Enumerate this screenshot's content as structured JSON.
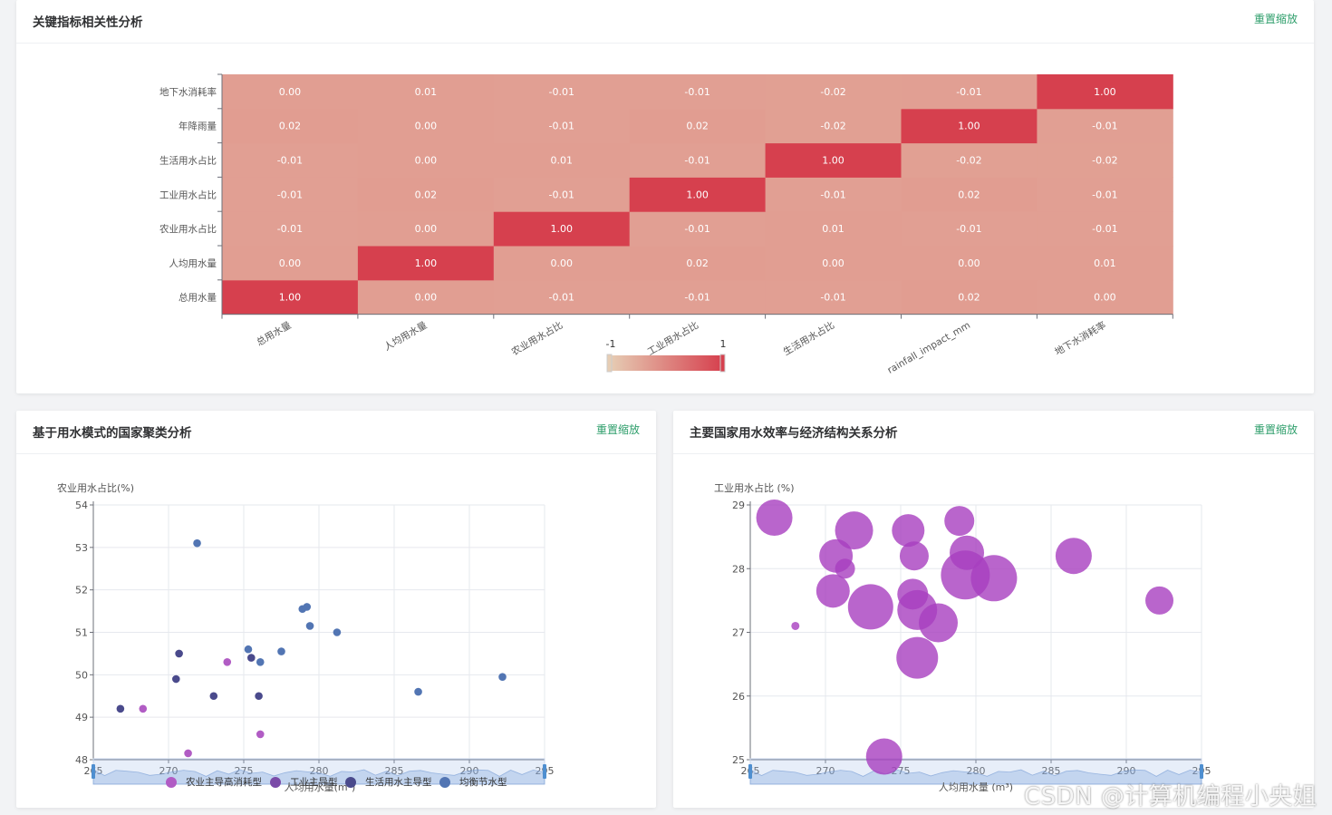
{
  "heatmap_card": {
    "title": "关键指标相关性分析",
    "reset_label": "重置缩放"
  },
  "cluster_card": {
    "title": "基于用水模式的国家聚类分析",
    "reset_label": "重置缩放"
  },
  "bubble_card": {
    "title": "主要国家用水效率与经济结构关系分析",
    "reset_label": "重置缩放"
  },
  "watermark": "CSDN @计算机编程小央姐",
  "chart_data": [
    {
      "type": "heatmap",
      "x_categories": [
        "总用水量",
        "人均用水量",
        "农业用水占比",
        "工业用水占比",
        "生活用水占比",
        "rainfall_impact_mm",
        "地下水消耗率"
      ],
      "y_categories": [
        "总用水量",
        "人均用水量",
        "农业用水占比",
        "工业用水占比",
        "生活用水占比",
        "年降雨量",
        "地下水消耗率"
      ],
      "matrix": [
        [
          "1.00",
          "0.00",
          "-0.01",
          "-0.01",
          "-0.01",
          "0.02",
          "0.00"
        ],
        [
          "0.00",
          "1.00",
          "0.00",
          "0.02",
          "0.00",
          "0.00",
          "0.01"
        ],
        [
          "-0.01",
          "0.00",
          "1.00",
          "-0.01",
          "0.01",
          "-0.01",
          "-0.01"
        ],
        [
          "-0.01",
          "0.02",
          "-0.01",
          "1.00",
          "-0.01",
          "0.02",
          "-0.01"
        ],
        [
          "-0.01",
          "0.00",
          "0.01",
          "-0.01",
          "1.00",
          "-0.02",
          "-0.02"
        ],
        [
          "0.02",
          "0.00",
          "-0.01",
          "0.02",
          "-0.02",
          "1.00",
          "-0.01"
        ],
        [
          "0.00",
          "0.01",
          "-0.01",
          "-0.01",
          "-0.02",
          "-0.01",
          "1.00"
        ]
      ],
      "visual_map": {
        "min": -1,
        "max": 1,
        "min_label": "-1",
        "max_label": "1",
        "colors": [
          "#e6cdb4",
          "#d6404e"
        ]
      }
    },
    {
      "type": "scatter",
      "xlabel": "人均用水量(m³)",
      "ylabel": "农业用水占比(%)",
      "xlim": [
        265,
        295
      ],
      "ylim": [
        48,
        54
      ],
      "x_ticks": [
        "265",
        "270",
        "275",
        "280",
        "285",
        "290",
        "295"
      ],
      "y_ticks": [
        "48",
        "49",
        "50",
        "51",
        "52",
        "53",
        "54"
      ],
      "series": [
        {
          "name": "农业主导高消耗型",
          "color": "#b15cc4",
          "points": [
            [
              273.9,
              50.3
            ],
            [
              276.1,
              48.6
            ],
            [
              268.3,
              49.2
            ],
            [
              271.3,
              48.15
            ]
          ]
        },
        {
          "name": "工业主导型",
          "color": "#7b4ba8",
          "points": []
        },
        {
          "name": "生活用水主导型",
          "color": "#4a4a8c",
          "points": [
            [
              266.8,
              49.2
            ],
            [
              270.5,
              49.9
            ],
            [
              270.7,
              50.5
            ],
            [
              273.0,
              49.5
            ],
            [
              275.5,
              50.4
            ],
            [
              276.0,
              49.5
            ]
          ]
        },
        {
          "name": "均衡节水型",
          "color": "#5275b3",
          "points": [
            [
              271.9,
              53.1
            ],
            [
              275.3,
              50.6
            ],
            [
              276.1,
              50.3
            ],
            [
              277.5,
              50.55
            ],
            [
              278.9,
              51.55
            ],
            [
              279.2,
              51.6
            ],
            [
              279.4,
              51.15
            ],
            [
              281.2,
              51.0
            ],
            [
              286.6,
              49.6
            ],
            [
              292.2,
              49.95
            ]
          ]
        }
      ]
    },
    {
      "type": "scatter",
      "subtype": "bubble",
      "xlabel": "人均用水量 (m³)",
      "ylabel": "工业用水占比 (%)",
      "xlim": [
        265,
        295
      ],
      "ylim": [
        25,
        29
      ],
      "x_ticks": [
        "265",
        "270",
        "275",
        "280",
        "285",
        "290",
        "295"
      ],
      "y_ticks": [
        "25",
        "26",
        "27",
        "28",
        "29"
      ],
      "color": "#a73fbf",
      "points": [
        [
          266.6,
          28.8,
          20
        ],
        [
          268.0,
          27.1,
          4.5
        ],
        [
          270.7,
          28.2,
          18.5
        ],
        [
          271.3,
          28.0,
          11
        ],
        [
          270.5,
          27.65,
          18.5
        ],
        [
          271.9,
          28.6,
          21
        ],
        [
          273.0,
          27.4,
          25
        ],
        [
          275.5,
          28.6,
          18
        ],
        [
          275.9,
          28.2,
          16
        ],
        [
          275.8,
          27.6,
          17
        ],
        [
          276.1,
          27.35,
          22
        ],
        [
          276.1,
          26.6,
          23
        ],
        [
          277.5,
          27.15,
          21.5
        ],
        [
          278.9,
          28.75,
          16.5
        ],
        [
          279.4,
          28.25,
          19
        ],
        [
          279.3,
          27.9,
          27
        ],
        [
          281.2,
          27.85,
          25.5
        ],
        [
          286.5,
          28.2,
          20
        ],
        [
          292.2,
          27.5,
          15.5
        ],
        [
          273.9,
          25.05,
          20
        ]
      ]
    }
  ]
}
